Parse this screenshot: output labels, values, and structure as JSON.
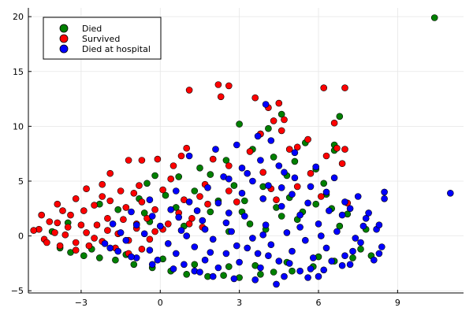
{
  "chart_data": {
    "type": "scatter",
    "title": "",
    "xlabel": "",
    "ylabel": "",
    "xlim": [
      -5.0,
      11.5
    ],
    "ylim": [
      -5.2,
      20.8
    ],
    "xticks": [
      -3,
      0,
      3,
      6,
      9
    ],
    "yticks": [
      -5,
      0,
      5,
      10,
      15,
      20
    ],
    "xtick_labels": [
      "−3",
      "0",
      "3",
      "6",
      "9"
    ],
    "ytick_labels": [
      "−5",
      "0",
      "5",
      "10",
      "15",
      "20"
    ],
    "grid": true,
    "legend_position": "top-left",
    "series": [
      {
        "name": "Died",
        "color": "#008000",
        "points": [
          [
            10.4,
            19.9
          ],
          [
            3.0,
            10.2
          ],
          [
            3.8,
            9.3
          ],
          [
            4.1,
            9.8
          ],
          [
            4.6,
            11.1
          ],
          [
            5.5,
            8.5
          ],
          [
            6.8,
            10.9
          ],
          [
            6.6,
            8.3
          ],
          [
            6.6,
            7.8
          ],
          [
            3.5,
            7.9
          ],
          [
            4.3,
            7.2
          ],
          [
            5.1,
            6.8
          ],
          [
            5.9,
            6.1
          ],
          [
            6.2,
            4.8
          ],
          [
            4.8,
            5.5
          ],
          [
            3.9,
            4.5
          ],
          [
            4.9,
            3.5
          ],
          [
            5.4,
            2.2
          ],
          [
            2.5,
            6.9
          ],
          [
            1.9,
            5.6
          ],
          [
            1.5,
            6.2
          ],
          [
            0.7,
            5.4
          ],
          [
            -0.2,
            5.5
          ],
          [
            -0.5,
            4.8
          ],
          [
            2.8,
            4.6
          ],
          [
            3.2,
            3.2
          ],
          [
            4.4,
            2.6
          ],
          [
            5.9,
            2.9
          ],
          [
            6.5,
            2.5
          ],
          [
            7.1,
            2.0
          ],
          [
            4.6,
            1.8
          ],
          [
            3.1,
            2.2
          ],
          [
            2.2,
            3.2
          ],
          [
            1.3,
            4.1
          ],
          [
            0.2,
            3.7
          ],
          [
            -0.8,
            3.4
          ],
          [
            -1.6,
            2.4
          ],
          [
            -2.3,
            2.9
          ],
          [
            -3.5,
            1.2
          ],
          [
            -4.1,
            0.4
          ],
          [
            -3.8,
            -1.1
          ],
          [
            -3.4,
            -1.5
          ],
          [
            -2.9,
            -1.8
          ],
          [
            -2.3,
            -2.0
          ],
          [
            -1.7,
            -2.2
          ],
          [
            -1.0,
            -2.6
          ],
          [
            -0.3,
            -2.9
          ],
          [
            0.4,
            -3.2
          ],
          [
            1.0,
            -3.5
          ],
          [
            1.8,
            -3.7
          ],
          [
            2.4,
            -3.6
          ],
          [
            3.0,
            -3.8
          ],
          [
            3.8,
            -3.5
          ],
          [
            4.3,
            -3.3
          ],
          [
            5.0,
            -3.2
          ],
          [
            5.8,
            -2.8
          ],
          [
            6.6,
            -2.3
          ],
          [
            7.3,
            -2.0
          ],
          [
            8.0,
            -1.8
          ],
          [
            7.6,
            -1.2
          ],
          [
            -2.6,
            -1.2
          ],
          [
            -1.3,
            -1.7
          ],
          [
            0.1,
            -2.1
          ],
          [
            1.3,
            -2.6
          ],
          [
            2.6,
            -2.8
          ],
          [
            3.6,
            -2.7
          ],
          [
            4.8,
            -2.4
          ],
          [
            6.0,
            -1.9
          ],
          [
            -0.6,
            2.1
          ],
          [
            0.6,
            2.6
          ],
          [
            1.9,
            2.2
          ],
          [
            3.4,
            1.1
          ],
          [
            5.2,
            1.5
          ],
          [
            6.8,
            0.9
          ],
          [
            7.8,
            0.6
          ],
          [
            0.9,
            0.9
          ],
          [
            -0.4,
            1.3
          ],
          [
            2.6,
            0.4
          ],
          [
            4.0,
            0.6
          ],
          [
            6.3,
            3.8
          ]
        ]
      },
      {
        "name": "Survived",
        "color": "#ff0000",
        "points": [
          [
            2.2,
            13.8
          ],
          [
            2.6,
            13.7
          ],
          [
            2.3,
            12.7
          ],
          [
            1.1,
            13.3
          ],
          [
            3.6,
            12.6
          ],
          [
            4.1,
            11.7
          ],
          [
            4.5,
            12.1
          ],
          [
            4.7,
            10.6
          ],
          [
            6.2,
            13.5
          ],
          [
            7.0,
            13.5
          ],
          [
            6.6,
            10.3
          ],
          [
            4.3,
            10.5
          ],
          [
            3.8,
            9.3
          ],
          [
            4.6,
            9.6
          ],
          [
            5.2,
            8.1
          ],
          [
            6.7,
            8.0
          ],
          [
            7.0,
            7.9
          ],
          [
            6.9,
            6.6
          ],
          [
            6.3,
            7.3
          ],
          [
            5.6,
            8.8
          ],
          [
            4.9,
            7.9
          ],
          [
            3.4,
            7.7
          ],
          [
            2.6,
            6.4
          ],
          [
            2.0,
            7.0
          ],
          [
            1.0,
            8.0
          ],
          [
            0.8,
            7.3
          ],
          [
            -0.1,
            7.0
          ],
          [
            0.5,
            6.4
          ],
          [
            -0.7,
            6.9
          ],
          [
            -1.2,
            6.9
          ],
          [
            -1.9,
            5.7
          ],
          [
            -2.2,
            4.7
          ],
          [
            -1.5,
            4.1
          ],
          [
            -0.8,
            4.6
          ],
          [
            0.1,
            4.2
          ],
          [
            1.5,
            3.6
          ],
          [
            2.6,
            4.1
          ],
          [
            3.9,
            5.8
          ],
          [
            4.2,
            4.3
          ],
          [
            5.2,
            4.5
          ],
          [
            5.7,
            5.7
          ],
          [
            6.1,
            3.6
          ],
          [
            7.1,
            3.0
          ],
          [
            4.4,
            3.3
          ],
          [
            -2.8,
            4.3
          ],
          [
            -3.2,
            3.4
          ],
          [
            -3.9,
            2.9
          ],
          [
            -4.2,
            1.3
          ],
          [
            -4.6,
            0.6
          ],
          [
            -4.4,
            -0.3
          ],
          [
            -3.9,
            1.2
          ],
          [
            -3.6,
            0.1
          ],
          [
            -3.2,
            -0.6
          ],
          [
            -2.8,
            0.3
          ],
          [
            -2.4,
            1.0
          ],
          [
            -2.0,
            1.6
          ],
          [
            -1.6,
            0.2
          ],
          [
            -1.2,
            -0.4
          ],
          [
            -0.9,
            0.7
          ],
          [
            -0.5,
            1.6
          ],
          [
            -0.2,
            0.4
          ],
          [
            0.3,
            1.1
          ],
          [
            0.7,
            2.1
          ],
          [
            1.2,
            1.6
          ],
          [
            1.6,
            0.8
          ],
          [
            -4.3,
            -0.6
          ],
          [
            -3.8,
            -0.9
          ],
          [
            -3.2,
            -1.3
          ],
          [
            -2.7,
            -0.9
          ],
          [
            -2.2,
            -0.5
          ],
          [
            -1.7,
            -1.1
          ],
          [
            -1.2,
            -1.6
          ],
          [
            -0.7,
            -1.2
          ],
          [
            -3.4,
            1.9
          ],
          [
            -2.9,
            2.3
          ],
          [
            -2.5,
            2.8
          ],
          [
            -1.9,
            3.2
          ],
          [
            -1.3,
            2.6
          ],
          [
            -0.7,
            3.1
          ],
          [
            -0.2,
            2.4
          ],
          [
            0.9,
            3.3
          ],
          [
            1.8,
            2.9
          ],
          [
            2.9,
            3.1
          ],
          [
            -4.0,
            0.3
          ],
          [
            -3.5,
            0.8
          ],
          [
            -3.0,
            1.0
          ],
          [
            -2.5,
            -0.2
          ],
          [
            -2.0,
            0.5
          ],
          [
            -1.4,
            1.5
          ],
          [
            -0.9,
            1.1
          ],
          [
            -0.4,
            -0.3
          ],
          [
            0.1,
            0.6
          ],
          [
            1.1,
            1.1
          ],
          [
            -4.8,
            0.5
          ],
          [
            -4.5,
            1.9
          ],
          [
            -3.7,
            2.3
          ],
          [
            -2.2,
            3.6
          ],
          [
            -1.0,
            3.9
          ],
          [
            0.4,
            5.2
          ],
          [
            1.7,
            4.7
          ]
        ]
      },
      {
        "name": "Died at hospital",
        "color": "#0000ff",
        "points": [
          [
            11.0,
            3.9
          ],
          [
            8.5,
            4.0
          ],
          [
            8.5,
            3.4
          ],
          [
            7.2,
            2.5
          ],
          [
            7.8,
            1.6
          ],
          [
            8.2,
            0.6
          ],
          [
            8.4,
            -1.0
          ],
          [
            8.1,
            -2.2
          ],
          [
            7.3,
            -1.4
          ],
          [
            6.9,
            -2.7
          ],
          [
            6.2,
            -3.1
          ],
          [
            5.6,
            -3.8
          ],
          [
            4.7,
            -3.7
          ],
          [
            4.4,
            -4.4
          ],
          [
            3.6,
            -4.0
          ],
          [
            2.8,
            -3.9
          ],
          [
            2.0,
            -3.7
          ],
          [
            1.3,
            -3.2
          ],
          [
            0.5,
            -3.0
          ],
          [
            -0.3,
            -2.6
          ],
          [
            -0.9,
            -2.0
          ],
          [
            -1.6,
            -1.4
          ],
          [
            -2.1,
            -0.7
          ],
          [
            -1.5,
            0.3
          ],
          [
            -0.9,
            1.0
          ],
          [
            -0.3,
            1.8
          ],
          [
            0.4,
            2.4
          ],
          [
            1.1,
            3.1
          ],
          [
            1.8,
            4.4
          ],
          [
            2.4,
            5.4
          ],
          [
            3.1,
            6.2
          ],
          [
            3.8,
            6.9
          ],
          [
            4.5,
            6.4
          ],
          [
            5.1,
            5.3
          ],
          [
            5.7,
            4.5
          ],
          [
            6.3,
            4.0
          ],
          [
            7.0,
            3.1
          ],
          [
            7.5,
            3.6
          ],
          [
            6.6,
            5.3
          ],
          [
            5.9,
            6.3
          ],
          [
            5.1,
            7.6
          ],
          [
            4.2,
            8.7
          ],
          [
            3.7,
            9.1
          ],
          [
            2.9,
            8.3
          ],
          [
            2.1,
            7.9
          ],
          [
            1.1,
            7.3
          ],
          [
            4.0,
            12.0
          ],
          [
            2.6,
            5.2
          ],
          [
            0.6,
            4.1
          ],
          [
            -0.4,
            3.3
          ],
          [
            -1.1,
            2.2
          ],
          [
            -1.8,
            1.1
          ],
          [
            7.7,
            0.9
          ],
          [
            7.4,
            -0.2
          ],
          [
            6.7,
            0.4
          ],
          [
            6.0,
            1.1
          ],
          [
            5.3,
            1.9
          ],
          [
            4.6,
            2.7
          ],
          [
            3.9,
            3.4
          ],
          [
            3.1,
            3.9
          ],
          [
            2.2,
            3.0
          ],
          [
            1.4,
            2.3
          ],
          [
            0.7,
            1.7
          ],
          [
            0.0,
            0.9
          ],
          [
            -0.6,
            0.2
          ],
          [
            -1.3,
            -0.4
          ],
          [
            -1.9,
            -1.1
          ],
          [
            -1.1,
            -1.9
          ],
          [
            -0.4,
            -1.3
          ],
          [
            0.3,
            -0.7
          ],
          [
            1.0,
            0.0
          ],
          [
            1.7,
            0.6
          ],
          [
            2.5,
            1.2
          ],
          [
            3.2,
            1.8
          ],
          [
            4.0,
            1.0
          ],
          [
            4.8,
            0.3
          ],
          [
            5.5,
            -0.4
          ],
          [
            6.3,
            -1.1
          ],
          [
            7.0,
            -1.8
          ],
          [
            6.5,
            -2.3
          ],
          [
            5.8,
            -2.0
          ],
          [
            5.0,
            -1.4
          ],
          [
            4.2,
            -0.8
          ],
          [
            3.5,
            -0.2
          ],
          [
            2.7,
            0.4
          ],
          [
            2.0,
            -0.3
          ],
          [
            1.3,
            -1.0
          ],
          [
            0.6,
            -1.6
          ],
          [
            -0.1,
            -2.2
          ],
          [
            0.9,
            -2.6
          ],
          [
            1.7,
            -2.2
          ],
          [
            2.5,
            -1.6
          ],
          [
            3.3,
            -1.1
          ],
          [
            4.1,
            -1.8
          ],
          [
            4.9,
            -2.5
          ],
          [
            5.7,
            -3.0
          ],
          [
            3.8,
            -2.9
          ],
          [
            3.0,
            -2.4
          ],
          [
            2.2,
            -2.9
          ],
          [
            1.5,
            -3.3
          ],
          [
            6.9,
            1.9
          ],
          [
            7.9,
            2.1
          ],
          [
            8.3,
            1.0
          ],
          [
            7.6,
            -0.6
          ],
          [
            8.3,
            -1.6
          ],
          [
            7.2,
            -2.6
          ],
          [
            6.4,
            2.3
          ],
          [
            5.6,
            3.0
          ],
          [
            4.6,
            4.4
          ],
          [
            3.5,
            5.0
          ],
          [
            2.6,
            2.1
          ],
          [
            1.6,
            1.4
          ],
          [
            0.8,
            0.5
          ],
          [
            3.9,
            0.1
          ],
          [
            5.3,
            0.8
          ],
          [
            6.1,
            0.0
          ],
          [
            2.9,
            -0.9
          ],
          [
            1.9,
            -1.5
          ],
          [
            3.7,
            -1.6
          ],
          [
            4.5,
            -2.3
          ],
          [
            5.3,
            -3.2
          ],
          [
            6.0,
            -3.7
          ],
          [
            4.1,
            4.6
          ],
          [
            3.3,
            5.7
          ],
          [
            5.0,
            3.8
          ],
          [
            4.7,
            5.8
          ]
        ]
      }
    ]
  }
}
